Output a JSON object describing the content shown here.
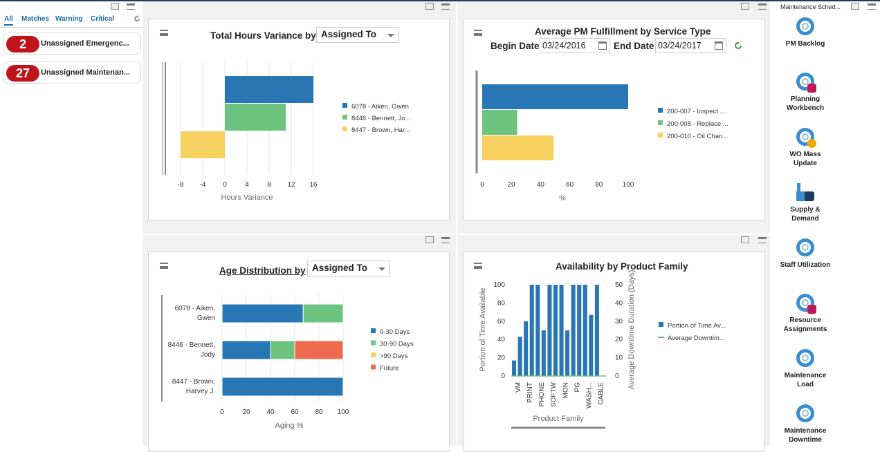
{
  "left_panel": {
    "tabs": [
      "All",
      "Matches",
      "Warning",
      "Critical"
    ],
    "alerts": [
      {
        "count": "2",
        "label": "Unassigned Emergenc..."
      },
      {
        "count": "27",
        "label": "Unassigned Maintenan..."
      }
    ]
  },
  "right_panel": {
    "header": "Maintenance Sched...",
    "apps": [
      {
        "label": "PM Backlog",
        "icon": "lifebuoy-icon"
      },
      {
        "label": "Planning Workbench",
        "icon": "lifebuoy-briefcase-icon"
      },
      {
        "label": "WO Mass Update",
        "icon": "lifebuoy-asterisk-icon"
      },
      {
        "label": "Supply & Demand",
        "icon": "factory-search-icon"
      },
      {
        "label": "Staff Utilization",
        "icon": "lifebuoy-icon"
      },
      {
        "label": "Resource Assignments",
        "icon": "lifebuoy-briefcase-icon"
      },
      {
        "label": "Maintenance Load",
        "icon": "lifebuoy-icon"
      },
      {
        "label": "Maintenance Downtime",
        "icon": "lifebuoy-icon"
      }
    ]
  },
  "colors": {
    "blue": "#2877b4",
    "green": "#6cc47f",
    "yellow": "#f8d261",
    "red": "#ee6a4f",
    "alert_red": "#c0141b",
    "link_blue": "#1b6aa6"
  },
  "panel1": {
    "title": "Total Hours Variance by",
    "select_value": "Assigned To",
    "chart_data": {
      "type": "bar",
      "orientation": "horizontal",
      "xlabel": "Hours Variance",
      "xlim": [
        -10,
        16
      ],
      "x_ticks": [
        "-8",
        "-4",
        "0",
        "4",
        "8",
        "12",
        "16"
      ],
      "series": [
        {
          "name": "6078 - Aiken, Gwen",
          "value": 16
        },
        {
          "name": "8446 - Bennett, Jo...",
          "value": 11
        },
        {
          "name": "8447 - Brown, Har...",
          "value": -8
        }
      ],
      "legend_position": "right"
    }
  },
  "panel2": {
    "title": "Average PM Fulfillment by Service Type",
    "begin_label": "Begin Date",
    "begin_value": "03/24/2016",
    "end_label": "End Date",
    "end_value": "03/24/2017",
    "chart_data": {
      "type": "bar",
      "orientation": "horizontal",
      "xlabel": "%",
      "xlim": [
        0,
        100
      ],
      "x_ticks": [
        "0",
        "20",
        "40",
        "60",
        "80",
        "100"
      ],
      "series": [
        {
          "name": "200-007 - Inspect ...",
          "value": 100
        },
        {
          "name": "200-008 - Replace ...",
          "value": 24
        },
        {
          "name": "200-010 - Oil Chan...",
          "value": 49
        }
      ],
      "legend_position": "right"
    }
  },
  "panel3": {
    "title": "Age Distribution by",
    "select_value": "Assigned To",
    "chart_data": {
      "type": "bar",
      "orientation": "horizontal",
      "stacked": true,
      "xlabel": "Aging %",
      "xlim": [
        0,
        100
      ],
      "x_ticks": [
        "0",
        "20",
        "40",
        "60",
        "80",
        "100"
      ],
      "categories": [
        [
          "6078 - Aiken,",
          "Gwen"
        ],
        [
          "8446 - Bennett,",
          "Jody"
        ],
        [
          "8447 - Brown,",
          "Harvey J."
        ]
      ],
      "series": [
        {
          "name": "0-30 Days",
          "values": [
            67,
            40,
            100
          ]
        },
        {
          "name": "30-90 Days",
          "values": [
            33,
            20,
            0
          ]
        },
        {
          "name": ">90 Days",
          "values": [
            0,
            0,
            0
          ]
        },
        {
          "name": "Future",
          "values": [
            0,
            40,
            0
          ]
        }
      ],
      "legend_position": "right"
    }
  },
  "panel4": {
    "title": "Availability by Product Family",
    "chart_data": {
      "type": "bar",
      "xlabel": "Product Family",
      "ylabel": "Portion of Time Available",
      "y2label": "Average Downtime Duration (Days)",
      "ylim": [
        0,
        100
      ],
      "y2lim": [
        0,
        50
      ],
      "y_ticks": [
        "0",
        "20",
        "40",
        "60",
        "80",
        "100"
      ],
      "y2_ticks": [
        "0",
        "10",
        "20",
        "30",
        "40",
        "50"
      ],
      "x_tick_labels": [
        "VM",
        "PRINT",
        "PHONE",
        "SOFTW",
        "MON",
        "PG",
        "WASH...",
        "CABLE"
      ],
      "series": [
        {
          "name": "Portion of Time Av...",
          "values": [
            17,
            43,
            60,
            100,
            100,
            50,
            100,
            100,
            100,
            50,
            100,
            100,
            100,
            67,
            100,
            0
          ]
        },
        {
          "name": "Average Downtim...",
          "values": [
            0,
            0,
            0,
            0,
            0,
            0,
            0,
            0,
            0,
            0,
            0,
            0,
            0,
            0,
            0,
            0
          ]
        }
      ],
      "legend_position": "right"
    }
  }
}
